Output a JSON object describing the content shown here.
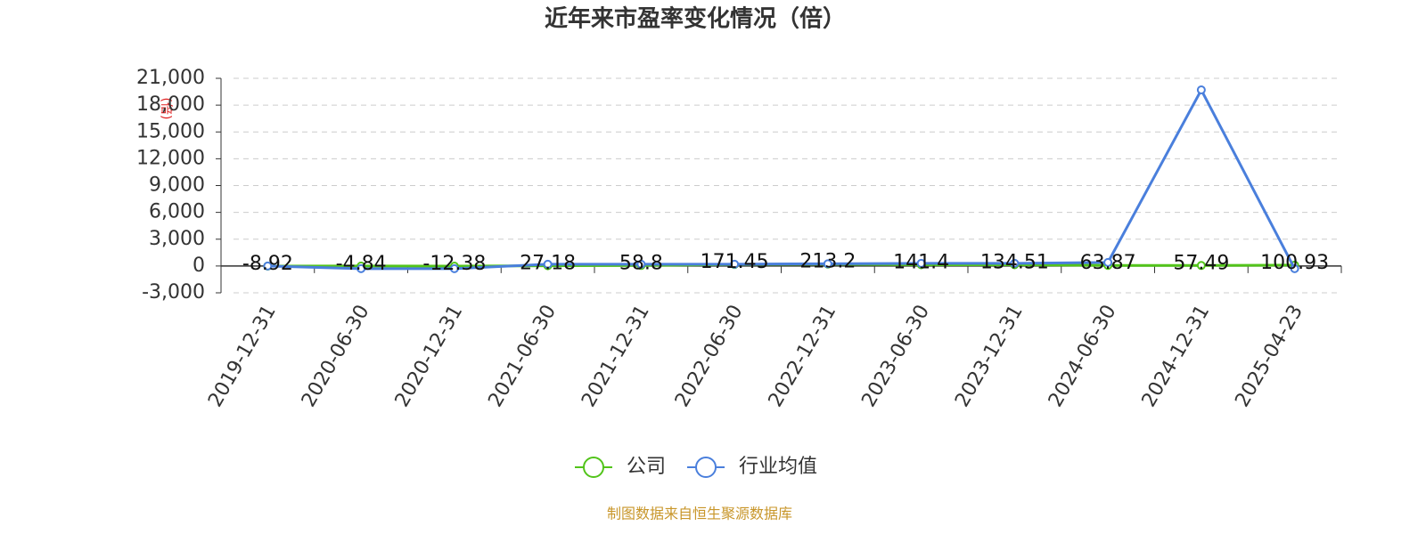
{
  "chart_data": {
    "type": "line",
    "title": "近年来市盈率变化情况（倍）",
    "y_label": "(倍)",
    "categories": [
      "2019-12-31",
      "2020-06-30",
      "2020-12-31",
      "2021-06-30",
      "2021-12-31",
      "2022-06-30",
      "2022-12-31",
      "2023-06-30",
      "2023-12-31",
      "2024-06-30",
      "2024-12-31",
      "2025-04-23"
    ],
    "series": [
      {
        "name": "公司",
        "color": "#52c41a",
        "values": [
          -8.92,
          -4.84,
          -12.38,
          27.18,
          58.8,
          171.45,
          213.2,
          141.4,
          134.51,
          63.87,
          57.49,
          100.93
        ]
      },
      {
        "name": "行业均值",
        "color": "#4a7fdc",
        "values": [
          0,
          -300,
          -300,
          200,
          200,
          200,
          250,
          300,
          300,
          400,
          19700,
          -300
        ]
      }
    ],
    "ylim": [
      -3000,
      21000
    ],
    "yticks": [
      {
        "value": -3000,
        "label": "-3,000"
      },
      0,
      {
        "value": 3000,
        "label": "3,000"
      },
      {
        "value": 6000,
        "label": "6,000"
      },
      {
        "value": 9000,
        "label": "9,000"
      },
      {
        "value": 12000,
        "label": "12,000"
      },
      {
        "value": 15000,
        "label": "15,000"
      },
      {
        "value": 18000,
        "label": "18,000"
      },
      {
        "value": 21000,
        "label": "21,000"
      }
    ],
    "grid": true,
    "source": "制图数据来自恒生聚源数据库"
  }
}
